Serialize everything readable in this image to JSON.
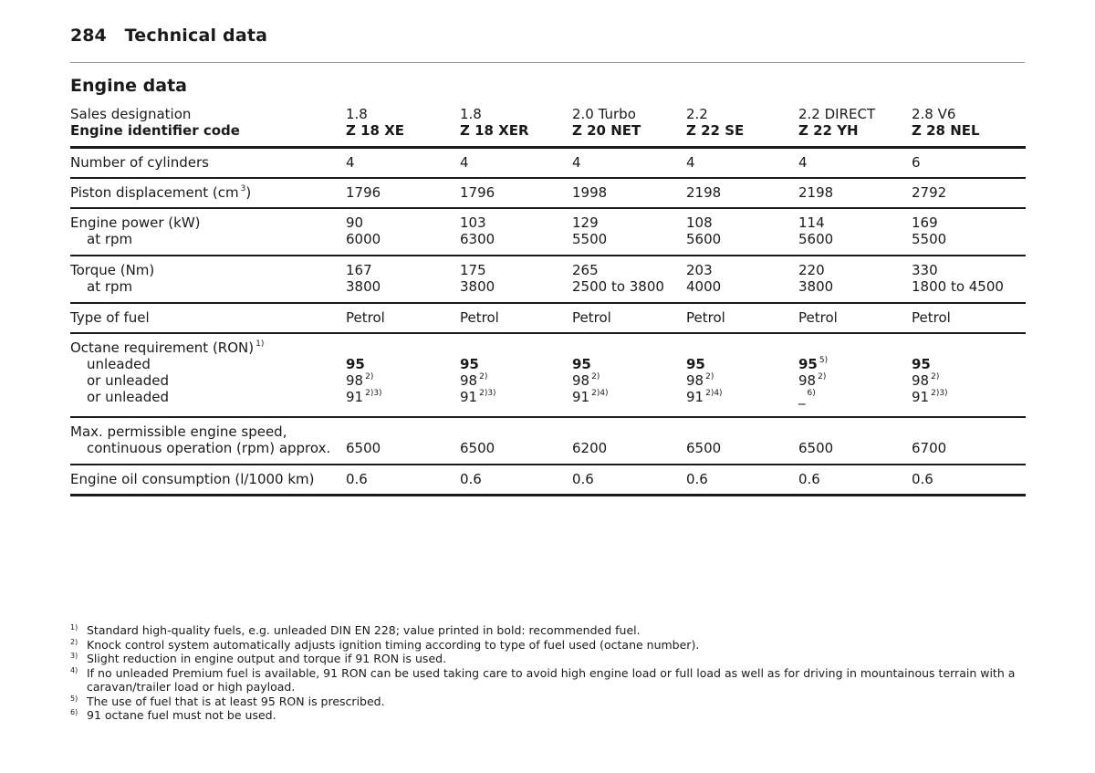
{
  "header": {
    "page_number": "284",
    "title": "Technical data"
  },
  "section": {
    "title": "Engine data"
  },
  "table": {
    "sales_designation_label": "Sales designation",
    "engine_code_label": "Engine identifier code",
    "columns": [
      {
        "sales": "1.8",
        "code": "Z 18 XE"
      },
      {
        "sales": "1.8",
        "code": "Z 18 XER"
      },
      {
        "sales": "2.0 Turbo",
        "code": "Z 20 NET"
      },
      {
        "sales": "2.2",
        "code": "Z 22 SE"
      },
      {
        "sales": "2.2 DIRECT",
        "code": "Z 22 YH"
      },
      {
        "sales": "2.8 V6",
        "code": "Z 28 NEL"
      }
    ],
    "cylinders": {
      "label": "Number of cylinders",
      "values": [
        "4",
        "4",
        "4",
        "4",
        "4",
        "6"
      ]
    },
    "displacement": {
      "label": "Piston displacement (cm",
      "label_sup": "3",
      "label_end": ")",
      "values": [
        "1796",
        "1796",
        "1998",
        "2198",
        "2198",
        "2792"
      ]
    },
    "power": {
      "label": "Engine power (kW)",
      "sublabel": "at rpm",
      "values": [
        "90",
        "103",
        "129",
        "108",
        "114",
        "169"
      ],
      "rpm": [
        "6000",
        "6300",
        "5500",
        "5600",
        "5600",
        "5500"
      ]
    },
    "torque": {
      "label": "Torque (Nm)",
      "sublabel": "at rpm",
      "values": [
        "167",
        "175",
        "265",
        "203",
        "220",
        "330"
      ],
      "rpm": [
        "3800",
        "3800",
        "2500 to 3800",
        "4000",
        "3800",
        "1800 to 4500"
      ]
    },
    "fuel": {
      "label": "Type of fuel",
      "values": [
        "Petrol",
        "Petrol",
        "Petrol",
        "Petrol",
        "Petrol",
        "Petrol"
      ]
    },
    "octane": {
      "label": "Octane requirement (RON)",
      "label_sup": "1)",
      "sub1": "unleaded",
      "sub2": "or unleaded",
      "sub3": "or unleaded",
      "unleaded": [
        {
          "v": "95",
          "s": ""
        },
        {
          "v": "95",
          "s": ""
        },
        {
          "v": "95",
          "s": ""
        },
        {
          "v": "95",
          "s": ""
        },
        {
          "v": "95",
          "s": "5)"
        },
        {
          "v": "95",
          "s": ""
        }
      ],
      "or1": [
        {
          "v": "98",
          "s": "2)"
        },
        {
          "v": "98",
          "s": "2)"
        },
        {
          "v": "98",
          "s": "2)"
        },
        {
          "v": "98",
          "s": "2)"
        },
        {
          "v": "98",
          "s": "2)"
        },
        {
          "v": "98",
          "s": "2)"
        }
      ],
      "or2": [
        {
          "v": "91",
          "s": "2)3)"
        },
        {
          "v": "91",
          "s": "2)3)"
        },
        {
          "v": "91",
          "s": "2)4)"
        },
        {
          "v": "91",
          "s": "2)4)"
        },
        {
          "v": "_",
          "s": "6)"
        },
        {
          "v": "91",
          "s": "2)3)"
        }
      ]
    },
    "speed": {
      "label": "Max. permissible engine speed,",
      "sublabel": "continuous operation (rpm) approx.",
      "values": [
        "6500",
        "6500",
        "6200",
        "6500",
        "6500",
        "6700"
      ]
    },
    "oil": {
      "label": "Engine oil consumption (l/1000 km)",
      "values": [
        "0.6",
        "0.6",
        "0.6",
        "0.6",
        "0.6",
        "0.6"
      ]
    }
  },
  "footnotes": [
    {
      "mark": "1)",
      "text": "Standard high-quality fuels, e.g. unleaded DIN EN 228; value printed in bold: recommended fuel."
    },
    {
      "mark": "2)",
      "text": "Knock control system automatically adjusts ignition timing according to type of fuel used (octane number)."
    },
    {
      "mark": "3)",
      "text": "Slight reduction in engine output and torque if 91 RON is used."
    },
    {
      "mark": "4)",
      "text": "If no unleaded Premium fuel is available, 91 RON can be used taking care to avoid high engine load or full load as well as for driving in mountainous terrain with a caravan/trailer load or high payload."
    },
    {
      "mark": "5)",
      "text": "The use of fuel that is at least 95 RON is prescribed."
    },
    {
      "mark": "6)",
      "text": "91 octane fuel must not be used."
    }
  ]
}
